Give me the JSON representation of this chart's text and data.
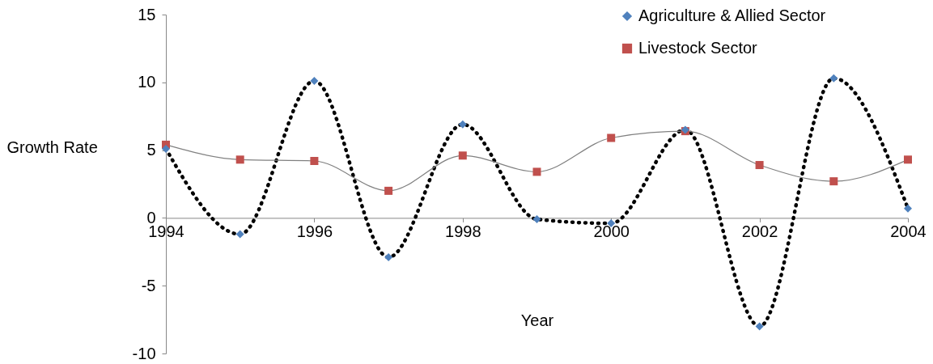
{
  "chart_data": {
    "type": "line",
    "xlabel": "Year",
    "ylabel": "Growth Rate",
    "x": [
      1994,
      1995,
      1996,
      1997,
      1998,
      1999,
      2000,
      2001,
      2002,
      2003,
      2004
    ],
    "xlim": [
      1994,
      2004
    ],
    "xticks": [
      1994,
      1996,
      1998,
      2000,
      2002,
      2004
    ],
    "ylim": [
      -10,
      15
    ],
    "yticks": [
      -10,
      -5,
      0,
      5,
      10,
      15
    ],
    "grid": false,
    "legend": "top right",
    "series": [
      {
        "name": "Agriculture & Allied Sector",
        "color": "#4f81bd",
        "marker": "diamond",
        "line_style": "dotted",
        "values": [
          5.1,
          -1.2,
          10.1,
          -2.9,
          6.9,
          -0.1,
          -0.4,
          6.5,
          -8.0,
          10.3,
          0.7
        ]
      },
      {
        "name": "Livestock Sector",
        "color": "#c0504d",
        "marker": "square",
        "line_style": "solid",
        "values": [
          5.4,
          4.3,
          4.2,
          2.0,
          4.6,
          3.4,
          5.9,
          6.4,
          3.9,
          2.7,
          4.3
        ]
      }
    ]
  }
}
